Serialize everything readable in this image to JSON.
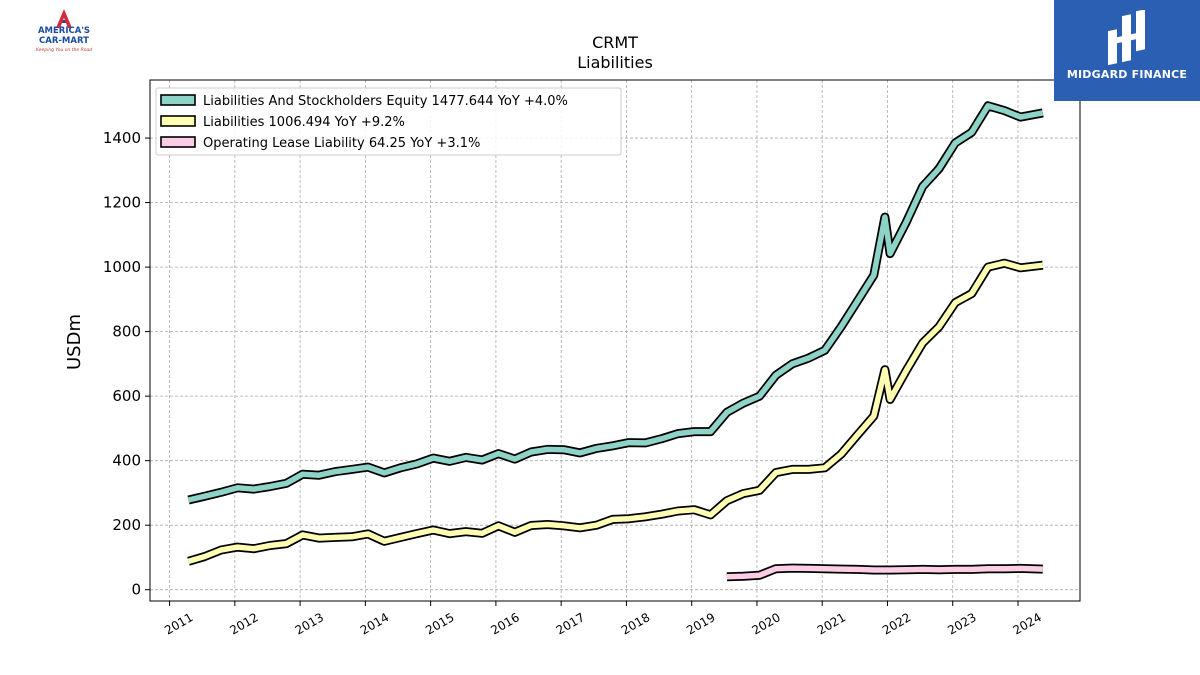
{
  "brand": {
    "logo_name": "AMERICA'S CAR-MART",
    "logo_line1": "AMERICA'S",
    "logo_line2": "CAR-MART",
    "tagline": "Keeping You on the Road"
  },
  "badge": {
    "text": "MIDGARD FINANCE",
    "color": "#2a5fb4"
  },
  "chart_data": {
    "type": "line",
    "title": "CRMT",
    "subtitle": "Liabilities",
    "ylabel": "USDm",
    "xlabel": "",
    "xlim": [
      2010.7,
      2024.95
    ],
    "ylim": [
      -35,
      1580
    ],
    "x_ticks": [
      "2011",
      "2012",
      "2013",
      "2014",
      "2015",
      "2016",
      "2017",
      "2018",
      "2019",
      "2020",
      "2021",
      "2022",
      "2023",
      "2024"
    ],
    "y_ticks": [
      "0",
      "200",
      "400",
      "600",
      "800",
      "1000",
      "1200",
      "1400"
    ],
    "grid": true,
    "legend_position": "top-left",
    "series": [
      {
        "name": "Liabilities And Stockholders Equity  1477.644 YoY +4.0%",
        "color": "#8dd3c7",
        "points": [
          [
            2011.29,
            278
          ],
          [
            2011.54,
            290
          ],
          [
            2011.79,
            302
          ],
          [
            2012.04,
            316
          ],
          [
            2012.29,
            312
          ],
          [
            2012.54,
            320
          ],
          [
            2012.79,
            330
          ],
          [
            2013.04,
            358
          ],
          [
            2013.29,
            355
          ],
          [
            2013.54,
            366
          ],
          [
            2013.79,
            373
          ],
          [
            2014.04,
            380
          ],
          [
            2014.29,
            362
          ],
          [
            2014.54,
            378
          ],
          [
            2014.79,
            390
          ],
          [
            2015.04,
            408
          ],
          [
            2015.29,
            398
          ],
          [
            2015.54,
            410
          ],
          [
            2015.79,
            402
          ],
          [
            2016.04,
            422
          ],
          [
            2016.29,
            405
          ],
          [
            2016.54,
            427
          ],
          [
            2016.79,
            435
          ],
          [
            2017.04,
            434
          ],
          [
            2017.29,
            424
          ],
          [
            2017.54,
            438
          ],
          [
            2017.79,
            446
          ],
          [
            2018.04,
            456
          ],
          [
            2018.29,
            455
          ],
          [
            2018.54,
            468
          ],
          [
            2018.79,
            484
          ],
          [
            2019.04,
            490
          ],
          [
            2019.29,
            490
          ],
          [
            2019.54,
            550
          ],
          [
            2019.79,
            578
          ],
          [
            2020.04,
            600
          ],
          [
            2020.29,
            665
          ],
          [
            2020.54,
            700
          ],
          [
            2020.79,
            718
          ],
          [
            2021.04,
            742
          ],
          [
            2021.29,
            815
          ],
          [
            2021.54,
            895
          ],
          [
            2021.79,
            975
          ],
          [
            2021.96,
            1155
          ],
          [
            2022.04,
            1042
          ],
          [
            2022.29,
            1140
          ],
          [
            2022.54,
            1250
          ],
          [
            2022.79,
            1305
          ],
          [
            2023.04,
            1385
          ],
          [
            2023.29,
            1418
          ],
          [
            2023.54,
            1500
          ],
          [
            2023.79,
            1485
          ],
          [
            2024.04,
            1465
          ],
          [
            2024.38,
            1478
          ]
        ]
      },
      {
        "name": "Liabilities  1006.494 YoY +9.2%",
        "color": "#ffffb3",
        "points": [
          [
            2011.29,
            88
          ],
          [
            2011.54,
            103
          ],
          [
            2011.79,
            123
          ],
          [
            2012.04,
            132
          ],
          [
            2012.29,
            127
          ],
          [
            2012.54,
            137
          ],
          [
            2012.79,
            143
          ],
          [
            2013.04,
            170
          ],
          [
            2013.29,
            160
          ],
          [
            2013.54,
            162
          ],
          [
            2013.79,
            164
          ],
          [
            2014.04,
            173
          ],
          [
            2014.29,
            150
          ],
          [
            2014.54,
            162
          ],
          [
            2014.79,
            174
          ],
          [
            2015.04,
            185
          ],
          [
            2015.29,
            174
          ],
          [
            2015.54,
            180
          ],
          [
            2015.79,
            175
          ],
          [
            2016.04,
            198
          ],
          [
            2016.29,
            178
          ],
          [
            2016.54,
            199
          ],
          [
            2016.79,
            202
          ],
          [
            2017.04,
            198
          ],
          [
            2017.29,
            192
          ],
          [
            2017.54,
            200
          ],
          [
            2017.79,
            218
          ],
          [
            2018.04,
            220
          ],
          [
            2018.29,
            226
          ],
          [
            2018.54,
            234
          ],
          [
            2018.79,
            244
          ],
          [
            2019.04,
            248
          ],
          [
            2019.29,
            232
          ],
          [
            2019.54,
            276
          ],
          [
            2019.79,
            298
          ],
          [
            2020.04,
            308
          ],
          [
            2020.29,
            363
          ],
          [
            2020.54,
            373
          ],
          [
            2020.79,
            373
          ],
          [
            2021.04,
            378
          ],
          [
            2021.29,
            420
          ],
          [
            2021.54,
            480
          ],
          [
            2021.79,
            538
          ],
          [
            2021.96,
            682
          ],
          [
            2022.04,
            590
          ],
          [
            2022.29,
            680
          ],
          [
            2022.54,
            765
          ],
          [
            2022.79,
            815
          ],
          [
            2023.04,
            890
          ],
          [
            2023.29,
            918
          ],
          [
            2023.54,
            1000
          ],
          [
            2023.79,
            1012
          ],
          [
            2024.04,
            998
          ],
          [
            2024.38,
            1006
          ]
        ]
      },
      {
        "name": "Operating Lease Liability  64.25 YoY +3.1%",
        "color": "#fccde5",
        "points": [
          [
            2019.54,
            40
          ],
          [
            2019.79,
            42
          ],
          [
            2020.04,
            45
          ],
          [
            2020.29,
            65
          ],
          [
            2020.54,
            67
          ],
          [
            2020.79,
            66
          ],
          [
            2021.04,
            65
          ],
          [
            2021.29,
            64
          ],
          [
            2021.54,
            63
          ],
          [
            2021.79,
            61
          ],
          [
            2022.04,
            61
          ],
          [
            2022.29,
            62
          ],
          [
            2022.54,
            63
          ],
          [
            2022.79,
            62
          ],
          [
            2023.04,
            63
          ],
          [
            2023.29,
            63
          ],
          [
            2023.54,
            65
          ],
          [
            2023.79,
            65
          ],
          [
            2024.04,
            66
          ],
          [
            2024.38,
            64
          ]
        ]
      }
    ]
  }
}
